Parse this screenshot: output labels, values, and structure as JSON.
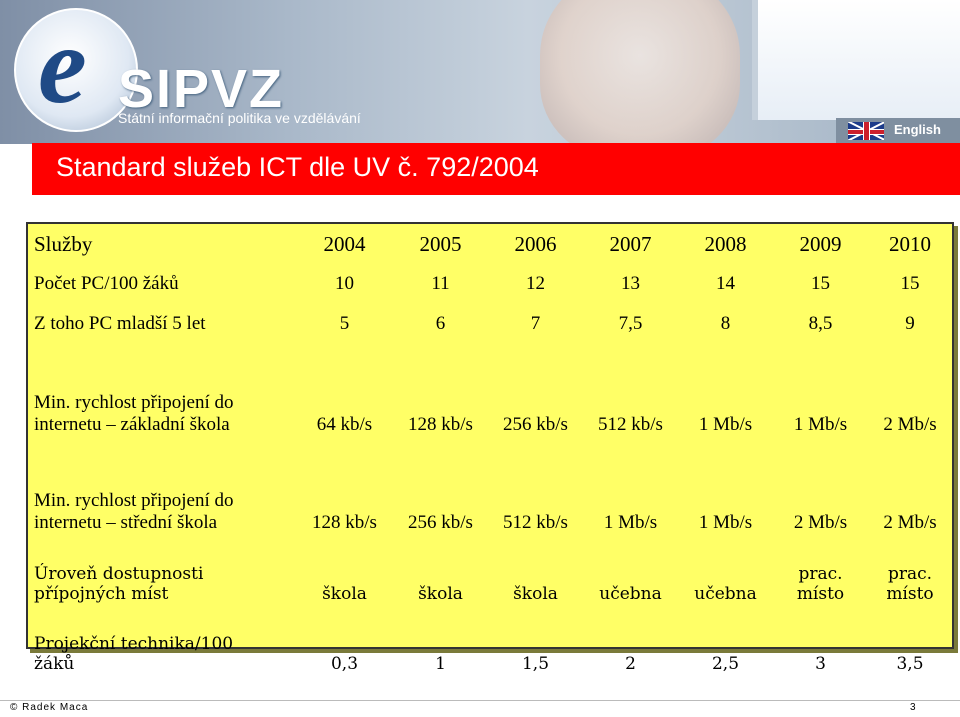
{
  "header": {
    "brand": "SIPVZ",
    "tagline": "Státní informační politika ve vzdělávání",
    "language_link": "English",
    "icons": {
      "flag": "uk-flag-icon",
      "logo": "sipvz-logo-icon"
    }
  },
  "slide": {
    "title": "Standard služeb ICT dle UV č. 792/2004"
  },
  "table": {
    "columns": [
      "Služby",
      "2004",
      "2005",
      "2006",
      "2007",
      "2008",
      "2009",
      "2010"
    ],
    "rows": [
      {
        "label": [
          "Počet PC/100 žáků"
        ],
        "values": [
          "10",
          "11",
          "12",
          "13",
          "14",
          "15",
          "15"
        ]
      },
      {
        "label": [
          "Z toho PC mladší 5 let"
        ],
        "values": [
          "5",
          "6",
          "7",
          "7,5",
          "8",
          "8,5",
          "9"
        ]
      },
      {
        "label": [
          "Min. rychlost připojení do",
          "internetu – základní škola"
        ],
        "values": [
          "64 kb/s",
          "128 kb/s",
          "256 kb/s",
          "512 kb/s",
          "1 Mb/s",
          "1 Mb/s",
          "2 Mb/s"
        ]
      },
      {
        "label": [
          "Min. rychlost připojení do",
          "internetu – střední škola"
        ],
        "values": [
          "128 kb/s",
          "256 kb/s",
          "512 kb/s",
          "1 Mb/s",
          "1 Mb/s",
          "2 Mb/s",
          "2 Mb/s"
        ]
      },
      {
        "label": [
          "Úroveň dostupnosti",
          "přípojných míst"
        ],
        "values": [
          [
            "škola"
          ],
          [
            "škola"
          ],
          [
            "škola"
          ],
          [
            "učebna"
          ],
          [
            "učebna"
          ],
          [
            "prac.",
            "místo"
          ],
          [
            "prac.",
            "místo"
          ]
        ]
      },
      {
        "label": [
          "Projekční technika/100",
          "žáků"
        ],
        "values": [
          "0,3",
          "1",
          "1,5",
          "2",
          "2,5",
          "3",
          "3,5"
        ]
      }
    ]
  },
  "footer": {
    "author": "© Radek Maca",
    "page": "3"
  },
  "colors": {
    "title_bar": "#ff0000",
    "table_bg": "#ffff66",
    "title_text": "#ffffff"
  }
}
